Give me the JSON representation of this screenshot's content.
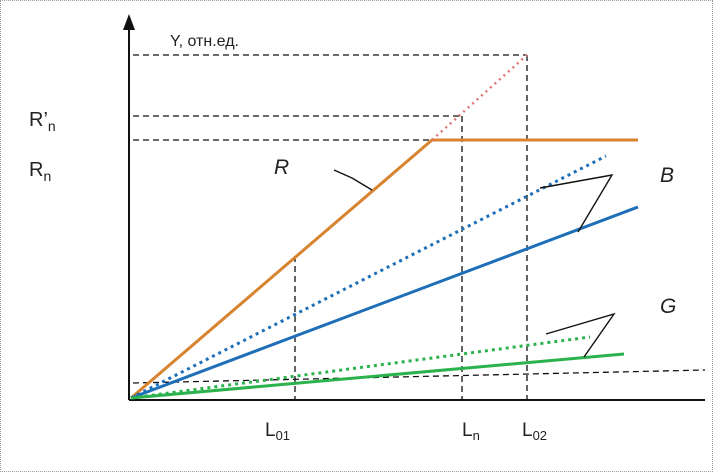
{
  "chart_data": {
    "type": "line",
    "y_axis_label": "Y, отн.ед.",
    "y_tick_labels": {
      "rn_prime": "R’",
      "rn": "R",
      "rn_sub": "n"
    },
    "x_tick_labels": [
      {
        "main": "L",
        "sub": "01"
      },
      {
        "main": "L",
        "sub": "n"
      },
      {
        "main": "L",
        "sub": "02"
      }
    ],
    "curve_labels": {
      "r": "R",
      "b": "B",
      "g": "G"
    },
    "colors": {
      "R": "#d8832e",
      "R_extension": "#e07070",
      "B": "#1f6fb8",
      "G": "#2bb24c",
      "guides": "#111111"
    },
    "series": [
      {
        "name": "R",
        "style": "solid",
        "shape": "linear rise then plateau at Rn"
      },
      {
        "name": "R",
        "style": "dotted",
        "shape": "linear extension to L02"
      },
      {
        "name": "B",
        "style": "solid",
        "shape": "linear"
      },
      {
        "name": "B",
        "style": "dotted",
        "shape": "linear"
      },
      {
        "name": "G",
        "style": "solid",
        "shape": "linear"
      },
      {
        "name": "G",
        "style": "dotted",
        "shape": "linear"
      }
    ]
  }
}
